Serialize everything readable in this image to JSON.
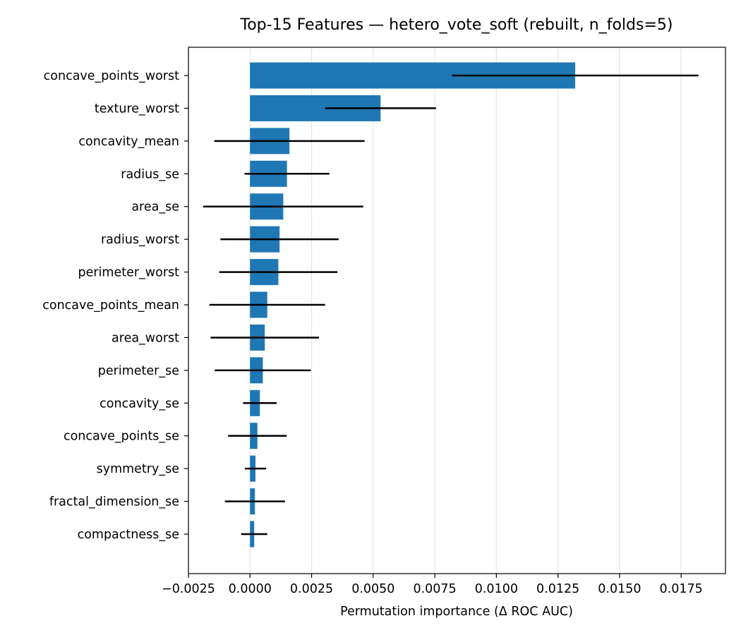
{
  "chart_data": {
    "type": "bar",
    "orientation": "horizontal",
    "title": "Top-15 Features — hetero_vote_soft (rebuilt, n_folds=5)",
    "xlabel": "Permutation importance (Δ ROC AUC)",
    "ylabel": "",
    "xlim": [
      -0.0025,
      0.0193
    ],
    "xticks": [
      -0.0025,
      0.0,
      0.0025,
      0.005,
      0.0075,
      0.01,
      0.0125,
      0.015,
      0.0175
    ],
    "xtick_labels": [
      "−0.0025",
      "0.0000",
      "0.0025",
      "0.0050",
      "0.0075",
      "0.0100",
      "0.0125",
      "0.0150",
      "0.0175"
    ],
    "grid": "x",
    "bar_color": "#1f77b4",
    "error_color": "#000000",
    "categories": [
      "concave_points_worst",
      "texture_worst",
      "concavity_mean",
      "radius_se",
      "area_se",
      "radius_worst",
      "perimeter_worst",
      "concave_points_mean",
      "area_worst",
      "perimeter_se",
      "concavity_se",
      "concave_points_se",
      "symmetry_se",
      "fractal_dimension_se",
      "compactness_se"
    ],
    "values": [
      0.0132,
      0.0053,
      0.0016,
      0.0015,
      0.00135,
      0.0012,
      0.00115,
      0.0007,
      0.0006,
      0.00052,
      0.0004,
      0.0003,
      0.00022,
      0.0002,
      0.00017
    ],
    "errors": [
      0.005,
      0.00225,
      0.00305,
      0.00172,
      0.00325,
      0.0024,
      0.0024,
      0.00235,
      0.0022,
      0.00195,
      0.00068,
      0.00119,
      0.00043,
      0.00122,
      0.00053
    ]
  }
}
